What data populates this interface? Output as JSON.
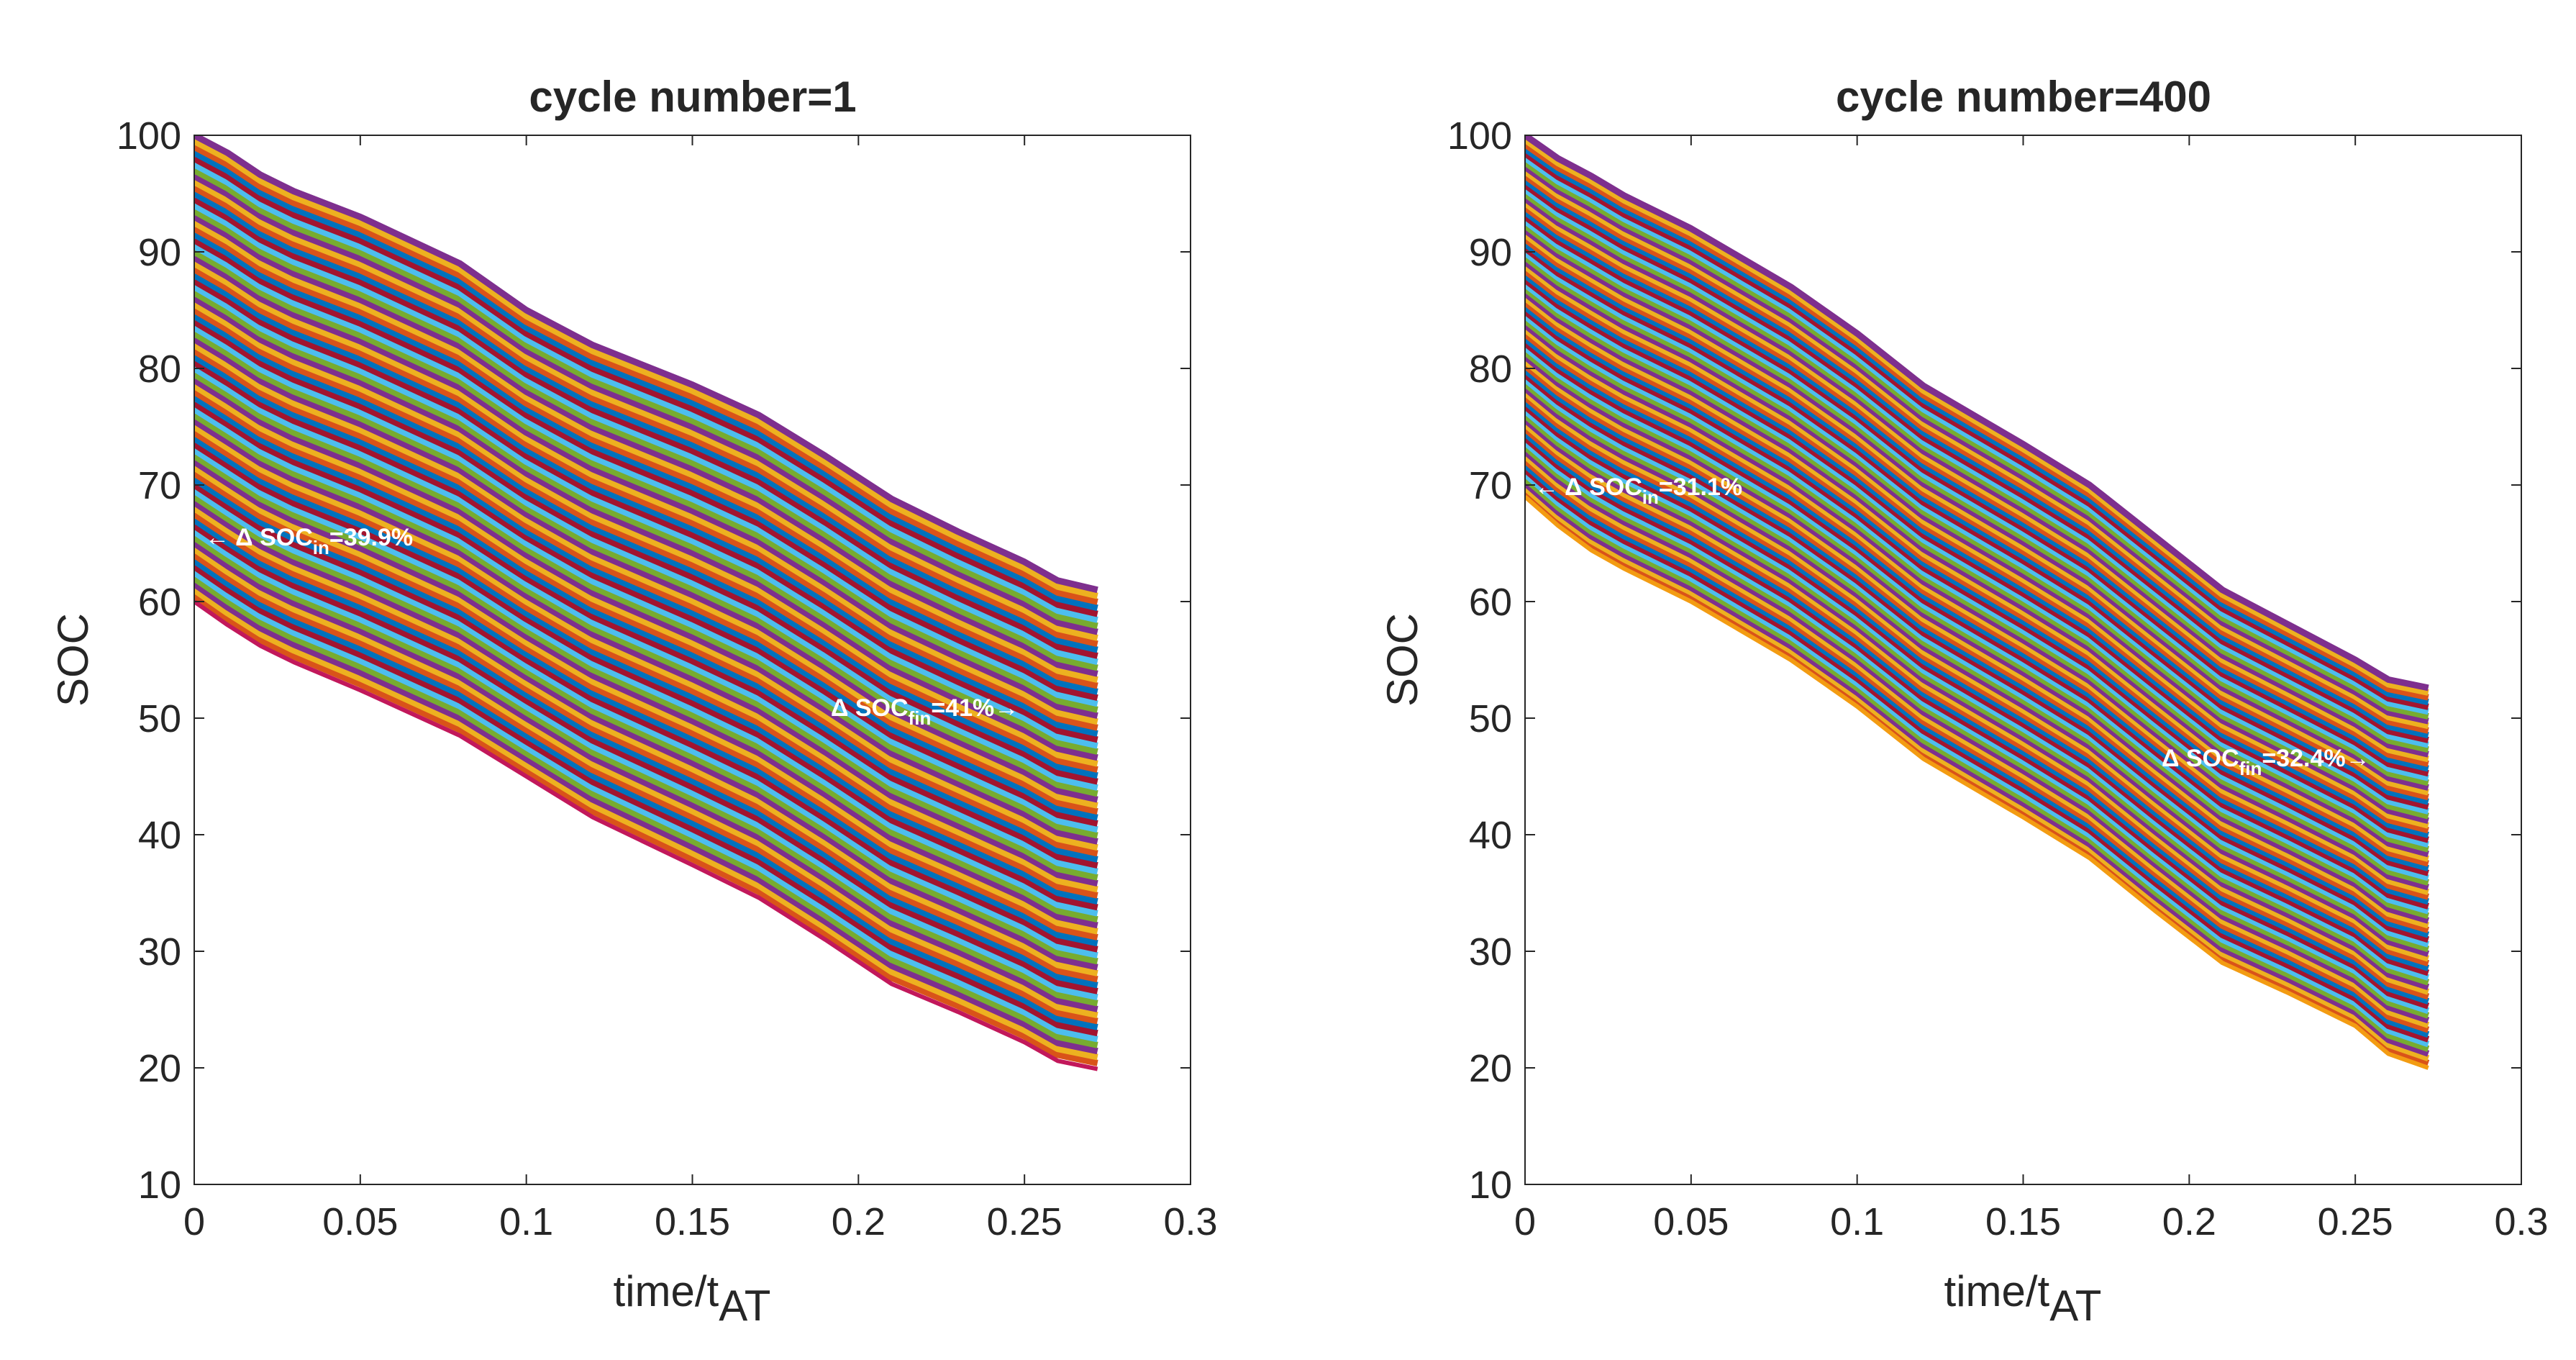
{
  "chart_data": [
    {
      "type": "line",
      "title": "cycle number=1",
      "xlabel": "time/t",
      "xlabel_sub": "AT",
      "ylabel": "SOC",
      "xlim": [
        0,
        0.3
      ],
      "ylim": [
        10,
        100
      ],
      "xticks": [
        "0",
        "0.05",
        "0.1",
        "0.15",
        "0.2",
        "0.25",
        "0.3"
      ],
      "yticks": [
        "10",
        "20",
        "30",
        "40",
        "50",
        "60",
        "70",
        "80",
        "90",
        "100"
      ],
      "series_count": 81,
      "x": [
        0,
        0.01,
        0.02,
        0.03,
        0.05,
        0.08,
        0.1,
        0.12,
        0.15,
        0.17,
        0.19,
        0.21,
        0.23,
        0.25,
        0.26,
        0.272
      ],
      "top_series": [
        100,
        98.5,
        96.6,
        95.2,
        93,
        89,
        85,
        82,
        78.6,
        76,
        72.5,
        68.8,
        66,
        63.4,
        61.8,
        61
      ],
      "bottom_series": [
        60,
        58,
        56.2,
        54.8,
        52.4,
        48.5,
        45,
        41.5,
        37.4,
        34.6,
        31,
        27.2,
        24.8,
        22.2,
        20.6,
        19.9
      ],
      "annotations": [
        {
          "prefix": "← Δ SOC",
          "sub": "in",
          "suffix": "=39.9%"
        },
        {
          "prefix": "Δ SOC",
          "sub": "fin",
          "suffix": "=41%→"
        }
      ],
      "bottom_line_color": "#c2185b"
    },
    {
      "type": "line",
      "title": "cycle number=400",
      "xlabel": "time/t",
      "xlabel_sub": "AT",
      "ylabel": "SOC",
      "xlim": [
        0,
        0.3
      ],
      "ylim": [
        10,
        100
      ],
      "xticks": [
        "0",
        "0.05",
        "0.1",
        "0.15",
        "0.2",
        "0.25",
        "0.3"
      ],
      "yticks": [
        "10",
        "20",
        "30",
        "40",
        "50",
        "60",
        "70",
        "80",
        "90",
        "100"
      ],
      "series_count": 81,
      "x": [
        0,
        0.01,
        0.02,
        0.03,
        0.05,
        0.08,
        0.1,
        0.12,
        0.15,
        0.17,
        0.19,
        0.21,
        0.23,
        0.25,
        0.26,
        0.272
      ],
      "top_series": [
        100,
        98,
        96.5,
        94.8,
        92,
        87,
        83,
        78.5,
        73.5,
        70,
        65.5,
        61,
        58,
        55,
        53.3,
        52.6
      ],
      "bottom_series": [
        69,
        66.5,
        64.4,
        62.8,
        60,
        55,
        51,
        46.5,
        41.5,
        38,
        33.4,
        29,
        26.4,
        23.6,
        21.2,
        20
      ],
      "annotations": [
        {
          "prefix": "← Δ SOC",
          "sub": "in",
          "suffix": "=31.1%"
        },
        {
          "prefix": "Δ SOC",
          "sub": "fin",
          "suffix": "=32.4%→"
        }
      ],
      "bottom_line_color": "#f39c12"
    }
  ],
  "palette": [
    "#0072bd",
    "#d95319",
    "#edb120",
    "#7e2f8e",
    "#77ac30",
    "#4dbeee",
    "#a2142f"
  ]
}
